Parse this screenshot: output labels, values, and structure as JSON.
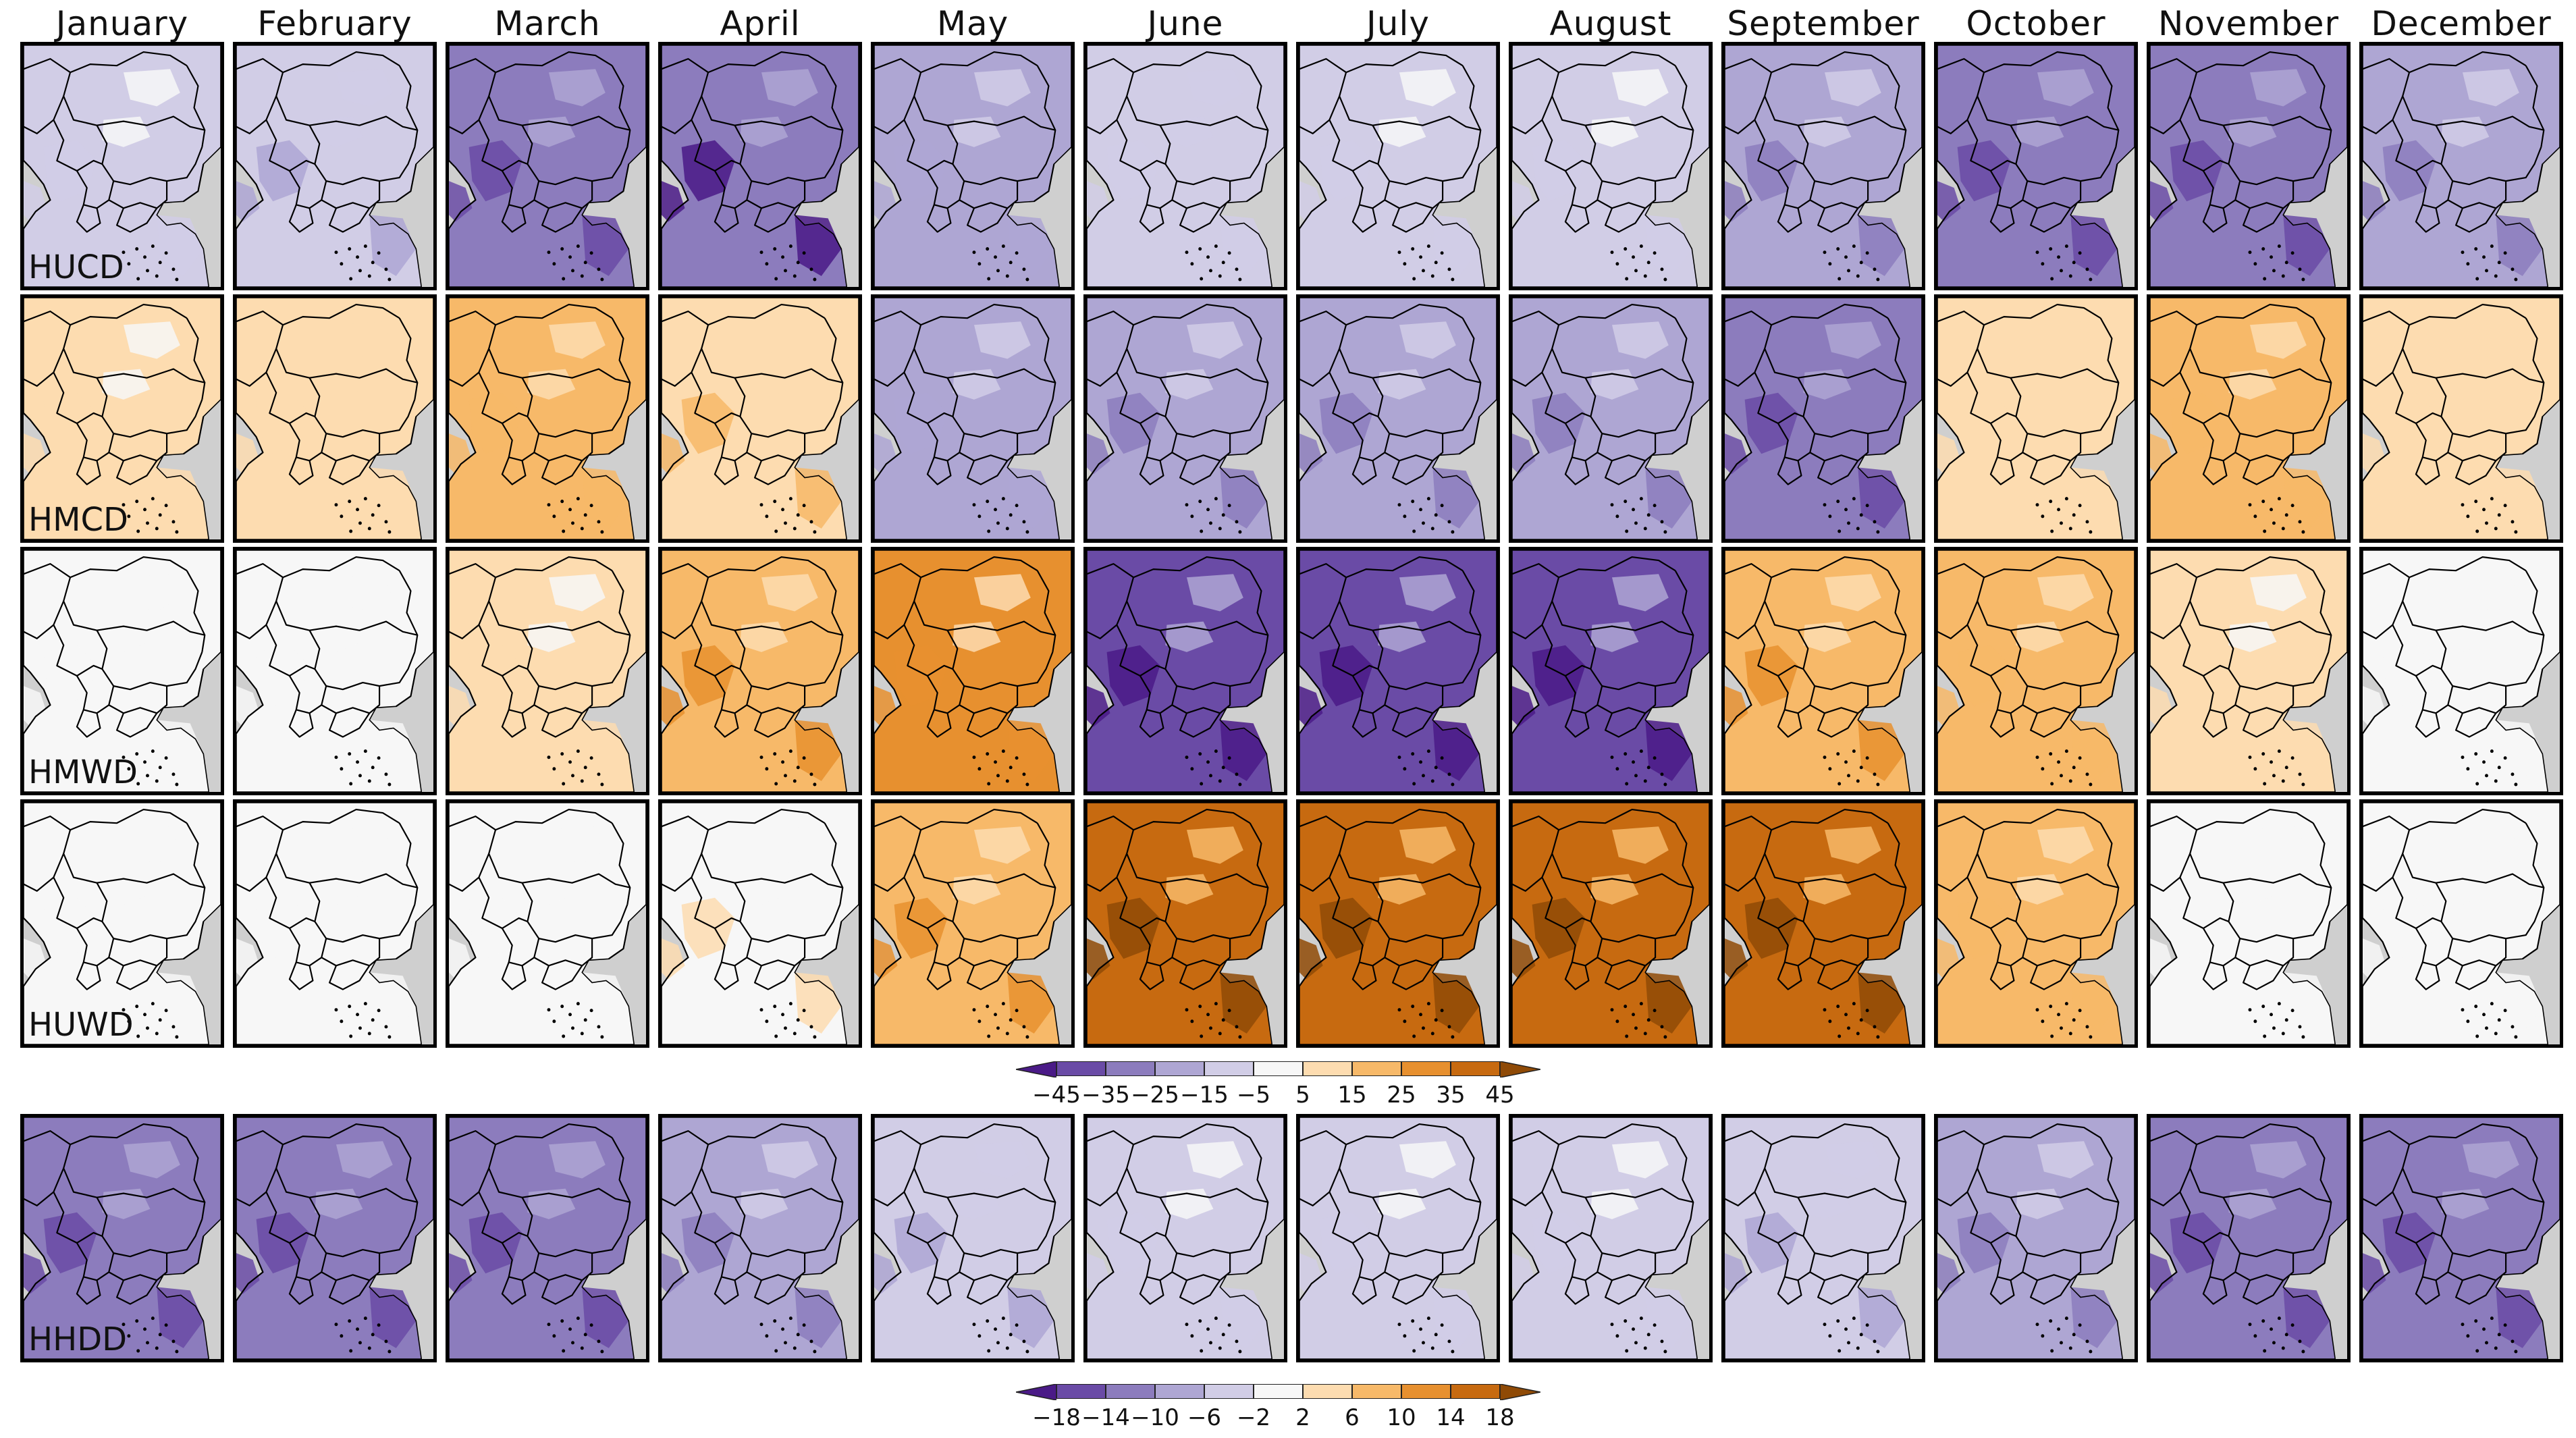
{
  "months": [
    "January",
    "February",
    "March",
    "April",
    "May",
    "June",
    "July",
    "August",
    "September",
    "October",
    "November",
    "December"
  ],
  "rows": [
    {
      "label": "HUCD",
      "scale": "a",
      "values": [
        -8,
        -14,
        -28,
        -35,
        -16,
        -10,
        -6,
        -7,
        -22,
        -33,
        -30,
        -22
      ]
    },
    {
      "label": "HMCD",
      "scale": "a",
      "values": [
        6,
        10,
        18,
        12,
        -18,
        -22,
        -20,
        -22,
        -32,
        10,
        15,
        10
      ]
    },
    {
      "label": "HMWD",
      "scale": "a",
      "values": [
        1,
        2,
        7,
        20,
        25,
        -38,
        -42,
        -42,
        22,
        18,
        6,
        2
      ]
    },
    {
      "label": "HUWD",
      "scale": "a",
      "values": [
        1,
        1,
        2,
        4,
        22,
        42,
        44,
        43,
        40,
        15,
        3,
        1
      ]
    },
    {
      "label": "HHDD",
      "scale": "b",
      "values": [
        -13,
        -12,
        -12,
        -8,
        -5,
        -3,
        -3,
        -3,
        -5,
        -9,
        -11,
        -12
      ]
    }
  ],
  "colorbars": [
    {
      "ticks": [
        "−45",
        "−35",
        "−25",
        "−15",
        "−5",
        "5",
        "15",
        "25",
        "35",
        "45"
      ]
    },
    {
      "ticks": [
        "−18",
        "−14",
        "−10",
        "−6",
        "−2",
        "2",
        "6",
        "10",
        "14",
        "18"
      ]
    }
  ],
  "palette": [
    "#4a1a87",
    "#6a4ba6",
    "#8c7cbd",
    "#aea6d3",
    "#d1cde6",
    "#f7f7f7",
    "#fddcb0",
    "#f7b969",
    "#e7902f",
    "#c76a10",
    "#8f4a06"
  ]
}
